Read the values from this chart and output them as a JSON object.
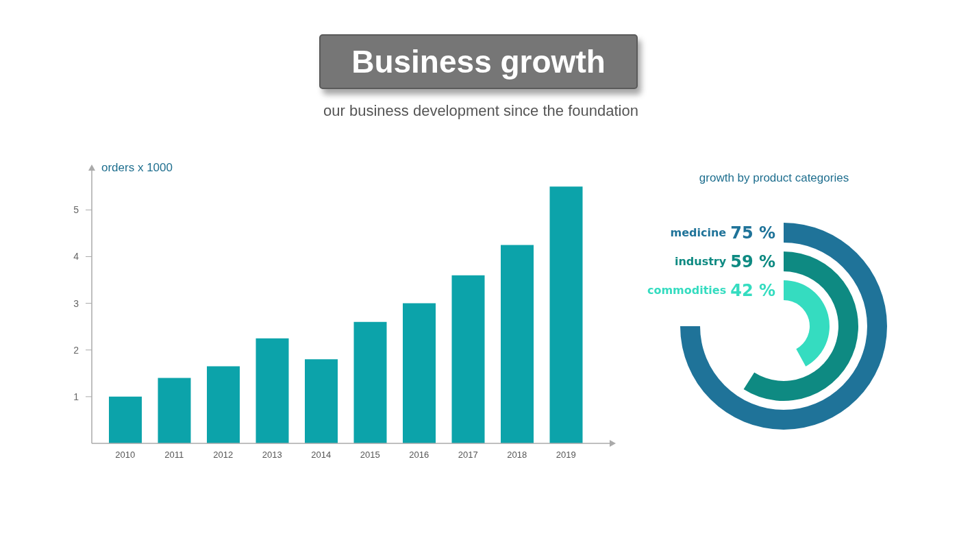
{
  "chart_data": [
    {
      "type": "bar",
      "title": "Business growth",
      "subtitle": "our business development since the foundation",
      "ylabel": "orders x 1000",
      "categories": [
        "2010",
        "2011",
        "2012",
        "2013",
        "2014",
        "2015",
        "2016",
        "2017",
        "2018",
        "2019"
      ],
      "values": [
        1.0,
        1.4,
        1.65,
        2.25,
        1.8,
        2.6,
        3.0,
        3.6,
        4.25,
        5.5
      ],
      "color": "#0ca3aa",
      "ylim": [
        0,
        5.9
      ],
      "yticks": [
        1,
        2,
        3,
        4,
        5
      ]
    },
    {
      "type": "other",
      "title": "growth by product categories",
      "categories": [
        "medicine",
        "industry",
        "commodities"
      ],
      "values": [
        75,
        59,
        42
      ],
      "colors": [
        "#1f7399",
        "#0e8a82",
        "#35dcc0"
      ],
      "value_labels": [
        "75 %",
        "59 %",
        "42 %"
      ]
    }
  ]
}
